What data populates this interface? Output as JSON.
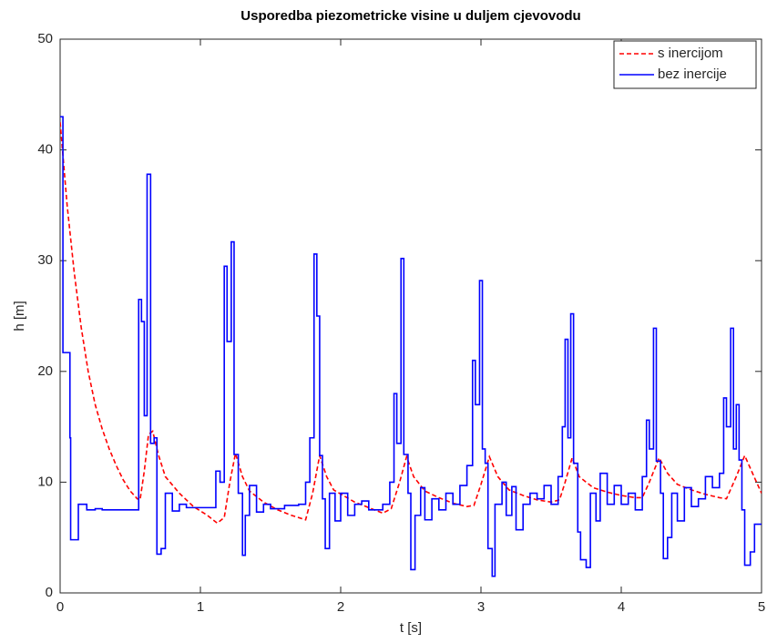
{
  "chart_data": {
    "type": "line",
    "title": "Usporedba piezometricke visine u duljem cjevovodu",
    "x_label": "t [s]",
    "y_label": "h [m]",
    "xlim": [
      0,
      5
    ],
    "xticks": [
      0,
      1,
      2,
      3,
      4,
      5
    ],
    "ylim": [
      0,
      50
    ],
    "yticks": [
      0,
      10,
      20,
      30,
      40,
      50
    ],
    "grid": false,
    "legend": "top-right",
    "series": [
      {
        "name": "s inercijom",
        "color": "#ff0000",
        "dash": true,
        "x": [
          0,
          0.05,
          0.1,
          0.15,
          0.2,
          0.25,
          0.3,
          0.35,
          0.4,
          0.45,
          0.5,
          0.55,
          0.57,
          0.6,
          0.63,
          0.66,
          0.7,
          0.75,
          0.85,
          0.95,
          1.05,
          1.12,
          1.17,
          1.21,
          1.25,
          1.3,
          1.35,
          1.45,
          1.55,
          1.65,
          1.75,
          1.8,
          1.85,
          1.9,
          1.95,
          2.1,
          2.2,
          2.3,
          2.36,
          2.42,
          2.47,
          2.52,
          2.6,
          2.7,
          2.8,
          2.9,
          2.95,
          3.0,
          3.06,
          3.12,
          3.2,
          3.3,
          3.4,
          3.5,
          3.56,
          3.6,
          3.65,
          3.7,
          3.8,
          3.9,
          4.0,
          4.1,
          4.15,
          4.2,
          4.27,
          4.33,
          4.4,
          4.5,
          4.6,
          4.7,
          4.75,
          4.82,
          4.88,
          4.95,
          5.0
        ],
        "values": [
          42.5,
          35,
          29,
          24,
          20,
          17,
          14.8,
          13,
          11.5,
          10.2,
          9.2,
          8.5,
          8.4,
          11,
          14.3,
          14.6,
          12.5,
          10.5,
          9,
          7.8,
          7,
          6.3,
          6.8,
          10,
          12.6,
          10.5,
          9.2,
          8.2,
          7.5,
          7,
          6.6,
          9,
          12.4,
          10.5,
          9.3,
          8.2,
          7.7,
          7.2,
          7.6,
          10,
          12.3,
          10.5,
          9.2,
          8.6,
          8.1,
          7.8,
          7.9,
          9.8,
          12.3,
          10.5,
          9.3,
          8.8,
          8.4,
          8.2,
          8.4,
          10,
          12.2,
          10.5,
          9.5,
          9.1,
          8.8,
          8.6,
          8.6,
          10,
          12.2,
          10.8,
          9.8,
          9.3,
          8.9,
          8.6,
          8.5,
          10.5,
          12.4,
          10.4,
          9
        ]
      },
      {
        "name": "bez inercije",
        "color": "#0000ff",
        "dash": false,
        "step": true,
        "x": [
          0,
          0.02,
          0.07,
          0.075,
          0.13,
          0.19,
          0.25,
          0.3,
          0.56,
          0.58,
          0.6,
          0.62,
          0.645,
          0.67,
          0.69,
          0.72,
          0.75,
          0.8,
          0.85,
          0.9,
          1.11,
          1.14,
          1.17,
          1.19,
          1.22,
          1.24,
          1.27,
          1.3,
          1.32,
          1.35,
          1.4,
          1.45,
          1.5,
          1.6,
          1.7,
          1.75,
          1.78,
          1.81,
          1.83,
          1.85,
          1.87,
          1.89,
          1.92,
          1.96,
          2.0,
          2.05,
          2.1,
          2.15,
          2.2,
          2.3,
          2.35,
          2.38,
          2.4,
          2.43,
          2.45,
          2.48,
          2.5,
          2.53,
          2.57,
          2.6,
          2.65,
          2.7,
          2.75,
          2.8,
          2.85,
          2.9,
          2.94,
          2.96,
          2.99,
          3.01,
          3.03,
          3.05,
          3.08,
          3.1,
          3.15,
          3.18,
          3.22,
          3.25,
          3.3,
          3.35,
          3.4,
          3.45,
          3.5,
          3.55,
          3.58,
          3.6,
          3.62,
          3.64,
          3.66,
          3.69,
          3.71,
          3.75,
          3.78,
          3.82,
          3.85,
          3.9,
          3.95,
          4.0,
          4.05,
          4.1,
          4.15,
          4.18,
          4.2,
          4.23,
          4.25,
          4.28,
          4.3,
          4.33,
          4.36,
          4.4,
          4.45,
          4.5,
          4.55,
          4.6,
          4.65,
          4.7,
          4.73,
          4.75,
          4.78,
          4.8,
          4.82,
          4.84,
          4.86,
          4.88,
          4.92,
          4.95,
          5.0
        ],
        "values": [
          43,
          21.7,
          14,
          4.8,
          8,
          7.5,
          7.6,
          7.5,
          26.5,
          24.5,
          16,
          37.8,
          13.5,
          14,
          3.5,
          4,
          9,
          7.4,
          8,
          7.7,
          11,
          10,
          29.5,
          22.7,
          31.7,
          12.5,
          9,
          3.4,
          7,
          9.7,
          7.3,
          8,
          7.6,
          7.9,
          8,
          10,
          14,
          30.6,
          25,
          12.4,
          8.5,
          4,
          9,
          6.5,
          9,
          7,
          8,
          8.3,
          7.5,
          8,
          10,
          18,
          13.5,
          30.2,
          12.5,
          9,
          2.1,
          7,
          9.5,
          6.6,
          8.5,
          7.5,
          9,
          8,
          9.7,
          11.5,
          21,
          17,
          28.2,
          13,
          11.7,
          4,
          1.5,
          8,
          10,
          7,
          9.6,
          5.7,
          8,
          9,
          8.5,
          9.7,
          8,
          10.5,
          15,
          22.9,
          14,
          25.2,
          11.7,
          5.5,
          3,
          2.3,
          9,
          6.5,
          10.8,
          8,
          9.7,
          8,
          9,
          7.5,
          10.5,
          15.6,
          13,
          23.9,
          11.9,
          9,
          3.1,
          5,
          9,
          6.5,
          9.5,
          7.8,
          8.5,
          10.5,
          9.5,
          10.8,
          17.6,
          15,
          23.9,
          13,
          17,
          12,
          7.5,
          2.5,
          3.7,
          6.2,
          6.2
        ]
      }
    ]
  }
}
